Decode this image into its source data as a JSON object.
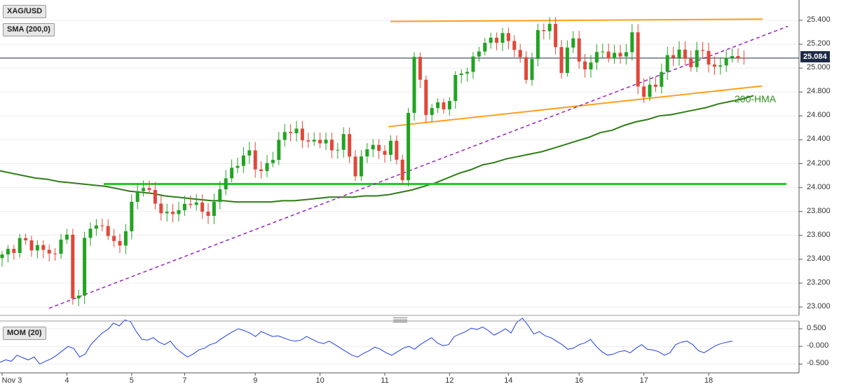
{
  "symbol": "XAG/USD",
  "indicator_label": "SMA (200,0)",
  "panel2_label": "MOM (20)",
  "current_price_label": "25.084",
  "hma_label": "200-HMA",
  "colors": {
    "up": "#22a322",
    "down": "#e0483a",
    "sma": "#2e7d15",
    "hma_text": "#2e8b1e",
    "resistance": "#ff9f1c",
    "support_bright": "#22cc22",
    "trend_dashed": "#9b1fc0",
    "mom": "#1f3ee0",
    "price_tag_bg": "#1c2a45"
  },
  "chart_data": [
    {
      "type": "candlestick",
      "title": "XAG/USD",
      "y_ticks": [
        "25.400",
        "25.200",
        "25.000",
        "24.800",
        "24.600",
        "24.400",
        "24.200",
        "24.000",
        "23.800",
        "23.600",
        "23.400",
        "23.200",
        "23.000"
      ],
      "ylim": [
        22.93,
        25.57
      ],
      "x_ticks": [
        "Nov 3",
        "4",
        "5",
        "7",
        "9",
        "10",
        "11",
        "12",
        "14",
        "16",
        "17",
        "18"
      ],
      "x_tick_positions": [
        0,
        11,
        22,
        31,
        43,
        54,
        65,
        76,
        86,
        98,
        109,
        120
      ],
      "current_price": 25.084,
      "ohlc_anchors": [
        [
          0,
          23.42
        ],
        [
          3,
          23.55
        ],
        [
          6,
          23.5
        ],
        [
          9,
          23.43
        ],
        [
          10,
          23.6
        ],
        [
          11,
          23.58
        ],
        [
          12,
          23.05
        ],
        [
          13,
          23.15
        ],
        [
          14,
          23.55
        ],
        [
          16,
          23.72
        ],
        [
          18,
          23.6
        ],
        [
          20,
          23.5
        ],
        [
          22,
          23.85
        ],
        [
          24,
          24.05
        ],
        [
          26,
          23.85
        ],
        [
          28,
          23.78
        ],
        [
          30,
          23.8
        ],
        [
          32,
          23.9
        ],
        [
          34,
          23.78
        ],
        [
          36,
          23.85
        ],
        [
          38,
          24.1
        ],
        [
          40,
          24.2
        ],
        [
          42,
          24.3
        ],
        [
          44,
          24.1
        ],
        [
          46,
          24.28
        ],
        [
          48,
          24.46
        ],
        [
          50,
          24.48
        ],
        [
          52,
          24.36
        ],
        [
          54,
          24.42
        ],
        [
          56,
          24.3
        ],
        [
          58,
          24.42
        ],
        [
          60,
          24.1
        ],
        [
          61,
          24.25
        ],
        [
          62,
          24.35
        ],
        [
          64,
          24.3
        ],
        [
          66,
          24.35
        ],
        [
          68,
          24.1
        ],
        [
          69,
          24.6
        ],
        [
          70,
          25.1
        ],
        [
          71,
          24.9
        ],
        [
          72,
          24.6
        ],
        [
          73,
          24.7
        ],
        [
          75,
          24.65
        ],
        [
          77,
          24.9
        ],
        [
          79,
          25.0
        ],
        [
          81,
          25.15
        ],
        [
          83,
          25.25
        ],
        [
          85,
          25.25
        ],
        [
          87,
          25.2
        ],
        [
          89,
          24.9
        ],
        [
          91,
          25.3
        ],
        [
          93,
          25.35
        ],
        [
          95,
          25.0
        ],
        [
          97,
          25.25
        ],
        [
          99,
          24.95
        ],
        [
          101,
          25.15
        ],
        [
          103,
          25.1
        ],
        [
          105,
          25.1
        ],
        [
          107,
          25.25
        ],
        [
          108,
          24.85
        ],
        [
          109,
          24.8
        ],
        [
          111,
          24.85
        ],
        [
          113,
          25.1
        ],
        [
          115,
          25.12
        ],
        [
          117,
          25.05
        ],
        [
          119,
          25.15
        ],
        [
          121,
          24.98
        ],
        [
          123,
          25.084
        ]
      ],
      "levels": {
        "resistance": 25.41,
        "horizontal_support": 24.03,
        "ascending_support": [
          24.51,
          24.85
        ],
        "rising_trendline": [
          22.99,
          25.35
        ]
      },
      "series": [
        {
          "name": "SMA (200,0)",
          "values": [
            24.14,
            24.12,
            24.1,
            24.08,
            24.07,
            24.05,
            24.04,
            24.03,
            24.02,
            24.01,
            23.99,
            23.97,
            23.96,
            23.95,
            23.93,
            23.92,
            23.91,
            23.9,
            23.89,
            23.89,
            23.88,
            23.88,
            23.88,
            23.88,
            23.89,
            23.89,
            23.9,
            23.91,
            23.92,
            23.92,
            23.92,
            23.93,
            23.93,
            23.94,
            23.96,
            23.98,
            24.01,
            24.04,
            24.08,
            24.12,
            24.15,
            24.19,
            24.21,
            24.24,
            24.26,
            24.28,
            24.3,
            24.33,
            24.36,
            24.39,
            24.42,
            24.46,
            24.48,
            24.52,
            24.55,
            24.57,
            24.6,
            24.61,
            24.63,
            24.65,
            24.67,
            24.7,
            24.72,
            24.74,
            24.77
          ]
        }
      ]
    },
    {
      "type": "line",
      "title": "MOM (20)",
      "y_ticks": [
        "0.500",
        "-0.000",
        "-0.500"
      ],
      "ylim": [
        -0.75,
        0.72
      ],
      "series": [
        {
          "name": "MOM (20)",
          "values": [
            -0.45,
            -0.38,
            -0.42,
            -0.25,
            -0.32,
            -0.38,
            -0.3,
            -0.5,
            -0.42,
            -0.35,
            -0.25,
            -0.12,
            0.0,
            -0.06,
            -0.3,
            -0.22,
            0.05,
            0.22,
            0.38,
            0.48,
            0.66,
            0.58,
            0.75,
            0.7,
            0.42,
            0.2,
            0.18,
            0.25,
            0.12,
            0.05,
            0.15,
            -0.05,
            -0.18,
            -0.3,
            -0.22,
            -0.1,
            -0.05,
            0.05,
            0.1,
            0.22,
            0.32,
            0.42,
            0.5,
            0.45,
            0.38,
            0.28,
            0.42,
            0.35,
            0.28,
            0.3,
            0.24,
            0.18,
            0.15,
            0.18,
            0.28,
            0.2,
            0.12,
            0.08,
            0.15,
            0.05,
            -0.05,
            -0.15,
            -0.25,
            -0.3,
            -0.2,
            -0.12,
            -0.02,
            -0.08,
            -0.18,
            -0.25,
            -0.15,
            -0.05,
            0.0,
            -0.08,
            0.05,
            0.15,
            0.25,
            0.1,
            0.02,
            0.05,
            0.28,
            0.35,
            0.42,
            0.52,
            0.48,
            0.55,
            0.45,
            0.32,
            0.4,
            0.5,
            0.38,
            0.68,
            0.8,
            0.6,
            0.35,
            0.42,
            0.3,
            0.25,
            0.15,
            0.05,
            -0.08,
            -0.05,
            0.05,
            0.1,
            0.2,
            0.0,
            -0.15,
            -0.25,
            -0.22,
            -0.15,
            -0.12,
            -0.18,
            -0.05,
            0.05,
            -0.08,
            -0.1,
            -0.15,
            -0.25,
            -0.18,
            0.05,
            0.12,
            0.15,
            0.05,
            -0.12,
            -0.18,
            -0.08,
            0.02,
            0.08,
            0.12,
            0.15
          ]
        }
      ]
    }
  ]
}
